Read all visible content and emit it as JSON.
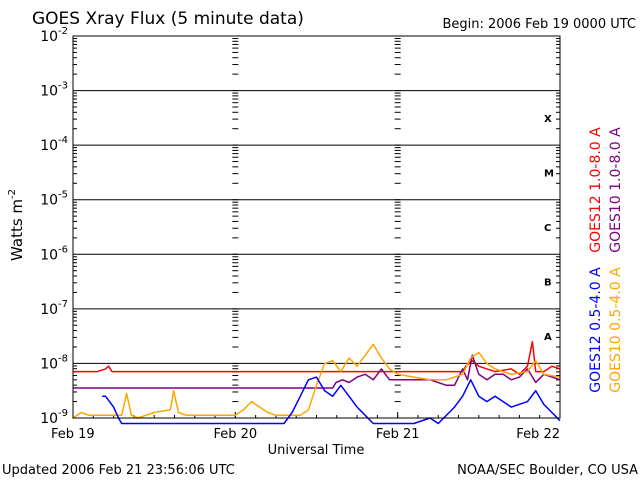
{
  "chart_data": {
    "type": "line",
    "title": "GOES Xray Flux (5 minute data)",
    "begin_label": "Begin:  2006 Feb 19 0000 UTC",
    "xlabel": "Universal Time",
    "ylabel": "Watts m",
    "ylabel_exponent": "-2",
    "y_scale": "log",
    "ylim": [
      1e-09,
      0.01
    ],
    "y_ticks": [
      {
        "base": "10",
        "exp": "-2"
      },
      {
        "base": "10",
        "exp": "-3"
      },
      {
        "base": "10",
        "exp": "-4"
      },
      {
        "base": "10",
        "exp": "-5"
      },
      {
        "base": "10",
        "exp": "-6"
      },
      {
        "base": "10",
        "exp": "-7"
      },
      {
        "base": "10",
        "exp": "-8"
      },
      {
        "base": "10",
        "exp": "-9"
      }
    ],
    "x_ticks": [
      "Feb 19",
      "Feb 20",
      "Feb 21",
      "Feb 22"
    ],
    "x_range_days": [
      0,
      3
    ],
    "flare_classes": [
      {
        "label": "X",
        "exp": -3.5
      },
      {
        "label": "M",
        "exp": -4.5
      },
      {
        "label": "C",
        "exp": -5.5
      },
      {
        "label": "B",
        "exp": -6.5
      },
      {
        "label": "A",
        "exp": -7.5
      }
    ],
    "legend": [
      {
        "label": "GOES12 0.5-4.0 A",
        "color": "#0000ff"
      },
      {
        "label": "GOES10 0.5-4.0 A",
        "color": "#ffa500"
      },
      {
        "label": "GOES12 1.0-8.0 A",
        "color": "#ff0000"
      },
      {
        "label": "GOES10 1.0-8.0 A",
        "color": "#800080"
      }
    ],
    "series": [
      {
        "name": "GOES12 1.0-8.0 A",
        "color": "#ff0000",
        "points": [
          [
            0.0,
            -8.15
          ],
          [
            0.15,
            -8.15
          ],
          [
            0.2,
            -8.1
          ],
          [
            0.22,
            -8.05
          ],
          [
            0.24,
            -8.15
          ],
          [
            0.4,
            -8.15
          ],
          [
            0.8,
            -8.15
          ],
          [
            1.2,
            -8.15
          ],
          [
            1.25,
            -8.15
          ],
          [
            1.45,
            -8.15
          ],
          [
            1.8,
            -8.15
          ],
          [
            2.2,
            -8.15
          ],
          [
            2.4,
            -8.15
          ],
          [
            2.42,
            -8.05
          ],
          [
            2.46,
            -7.95
          ],
          [
            2.5,
            -8.05
          ],
          [
            2.55,
            -8.1
          ],
          [
            2.6,
            -8.15
          ],
          [
            2.7,
            -8.1
          ],
          [
            2.75,
            -8.2
          ],
          [
            2.8,
            -8.05
          ],
          [
            2.83,
            -7.6
          ],
          [
            2.85,
            -8.15
          ],
          [
            2.9,
            -8.15
          ],
          [
            2.95,
            -8.05
          ],
          [
            3.0,
            -8.1
          ]
        ]
      },
      {
        "name": "GOES10 1.0-8.0 A",
        "color": "#800080",
        "points": [
          [
            0.0,
            -8.45
          ],
          [
            0.5,
            -8.45
          ],
          [
            1.0,
            -8.45
          ],
          [
            1.5,
            -8.45
          ],
          [
            1.6,
            -8.45
          ],
          [
            1.62,
            -8.35
          ],
          [
            1.66,
            -8.3
          ],
          [
            1.7,
            -8.35
          ],
          [
            1.75,
            -8.25
          ],
          [
            1.8,
            -8.2
          ],
          [
            1.85,
            -8.3
          ],
          [
            1.9,
            -8.1
          ],
          [
            1.95,
            -8.3
          ],
          [
            2.0,
            -8.3
          ],
          [
            2.1,
            -8.3
          ],
          [
            2.2,
            -8.3
          ],
          [
            2.3,
            -8.4
          ],
          [
            2.35,
            -8.4
          ],
          [
            2.4,
            -8.1
          ],
          [
            2.43,
            -8.3
          ],
          [
            2.46,
            -7.85
          ],
          [
            2.5,
            -8.2
          ],
          [
            2.55,
            -8.3
          ],
          [
            2.6,
            -8.2
          ],
          [
            2.65,
            -8.2
          ],
          [
            2.7,
            -8.3
          ],
          [
            2.75,
            -8.25
          ],
          [
            2.8,
            -8.1
          ],
          [
            2.85,
            -8.35
          ],
          [
            2.9,
            -8.2
          ],
          [
            2.95,
            -8.25
          ],
          [
            3.0,
            -8.3
          ]
        ]
      },
      {
        "name": "GOES10 0.5-4.0 A",
        "color": "#ffa500",
        "points": [
          [
            0.0,
            -9.0
          ],
          [
            0.05,
            -8.9
          ],
          [
            0.1,
            -8.95
          ],
          [
            0.2,
            -8.95
          ],
          [
            0.3,
            -8.95
          ],
          [
            0.33,
            -8.55
          ],
          [
            0.36,
            -8.95
          ],
          [
            0.4,
            -9.0
          ],
          [
            0.5,
            -8.9
          ],
          [
            0.6,
            -8.85
          ],
          [
            0.62,
            -8.5
          ],
          [
            0.65,
            -8.9
          ],
          [
            0.7,
            -8.95
          ],
          [
            1.0,
            -8.95
          ],
          [
            1.05,
            -8.85
          ],
          [
            1.1,
            -8.7
          ],
          [
            1.15,
            -8.8
          ],
          [
            1.2,
            -8.9
          ],
          [
            1.25,
            -8.95
          ],
          [
            1.3,
            -8.95
          ],
          [
            1.35,
            -8.95
          ],
          [
            1.4,
            -8.95
          ],
          [
            1.45,
            -8.85
          ],
          [
            1.5,
            -8.4
          ],
          [
            1.55,
            -8.0
          ],
          [
            1.6,
            -7.95
          ],
          [
            1.65,
            -8.15
          ],
          [
            1.7,
            -7.9
          ],
          [
            1.75,
            -8.05
          ],
          [
            1.8,
            -7.85
          ],
          [
            1.85,
            -7.65
          ],
          [
            1.9,
            -7.9
          ],
          [
            1.95,
            -8.1
          ],
          [
            2.0,
            -8.2
          ],
          [
            2.1,
            -8.25
          ],
          [
            2.2,
            -8.3
          ],
          [
            2.3,
            -8.3
          ],
          [
            2.4,
            -8.2
          ],
          [
            2.45,
            -7.9
          ],
          [
            2.5,
            -7.8
          ],
          [
            2.55,
            -8.0
          ],
          [
            2.6,
            -8.1
          ],
          [
            2.7,
            -8.2
          ],
          [
            2.8,
            -8.15
          ],
          [
            2.85,
            -7.95
          ],
          [
            2.9,
            -8.2
          ],
          [
            3.0,
            -8.25
          ]
        ]
      },
      {
        "name": "GOES12 0.5-4.0 A",
        "color": "#0000ff",
        "points": [
          [
            0.18,
            -8.6
          ],
          [
            0.2,
            -8.6
          ],
          [
            0.25,
            -8.8
          ],
          [
            0.28,
            -9.0
          ],
          [
            0.3,
            -9.1
          ],
          [
            1.3,
            -9.1
          ],
          [
            1.35,
            -8.9
          ],
          [
            1.4,
            -8.6
          ],
          [
            1.45,
            -8.3
          ],
          [
            1.5,
            -8.25
          ],
          [
            1.55,
            -8.5
          ],
          [
            1.6,
            -8.6
          ],
          [
            1.65,
            -8.4
          ],
          [
            1.7,
            -8.6
          ],
          [
            1.75,
            -8.8
          ],
          [
            1.8,
            -8.95
          ],
          [
            1.85,
            -9.1
          ],
          [
            1.9,
            -9.1
          ],
          [
            2.0,
            -9.1
          ],
          [
            2.1,
            -9.1
          ],
          [
            2.2,
            -9.0
          ],
          [
            2.25,
            -9.1
          ],
          [
            2.35,
            -8.8
          ],
          [
            2.4,
            -8.6
          ],
          [
            2.45,
            -8.3
          ],
          [
            2.5,
            -8.6
          ],
          [
            2.55,
            -8.7
          ],
          [
            2.6,
            -8.6
          ],
          [
            2.7,
            -8.8
          ],
          [
            2.8,
            -8.7
          ],
          [
            2.85,
            -8.5
          ],
          [
            2.9,
            -8.75
          ],
          [
            2.95,
            -8.9
          ],
          [
            3.0,
            -9.05
          ]
        ]
      }
    ]
  },
  "footer": {
    "updated": "Updated 2006 Feb 21 23:56:06 UTC",
    "credit": "NOAA/SEC Boulder, CO USA"
  }
}
